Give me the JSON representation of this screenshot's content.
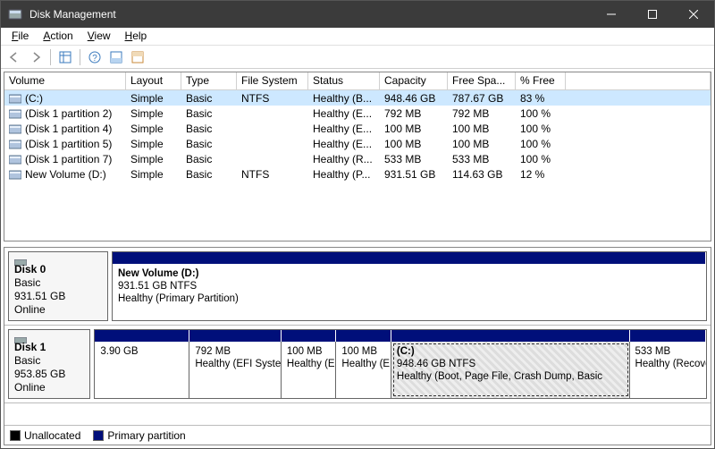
{
  "window": {
    "title": "Disk Management"
  },
  "menu": {
    "file": "File",
    "action": "Action",
    "view": "View",
    "help": "Help"
  },
  "columns": {
    "volume": "Volume",
    "layout": "Layout",
    "type": "Type",
    "filesystem": "File System",
    "status": "Status",
    "capacity": "Capacity",
    "freespace": "Free Spa...",
    "pctfree": "% Free"
  },
  "volumes": [
    {
      "name": "(C:)",
      "layout": "Simple",
      "type": "Basic",
      "fs": "NTFS",
      "status": "Healthy (B...",
      "capacity": "948.46 GB",
      "free": "787.67 GB",
      "pct": "83 %",
      "selected": true
    },
    {
      "name": "(Disk 1 partition 2)",
      "layout": "Simple",
      "type": "Basic",
      "fs": "",
      "status": "Healthy (E...",
      "capacity": "792 MB",
      "free": "792 MB",
      "pct": "100 %"
    },
    {
      "name": "(Disk 1 partition 4)",
      "layout": "Simple",
      "type": "Basic",
      "fs": "",
      "status": "Healthy (E...",
      "capacity": "100 MB",
      "free": "100 MB",
      "pct": "100 %"
    },
    {
      "name": "(Disk 1 partition 5)",
      "layout": "Simple",
      "type": "Basic",
      "fs": "",
      "status": "Healthy (E...",
      "capacity": "100 MB",
      "free": "100 MB",
      "pct": "100 %"
    },
    {
      "name": "(Disk 1 partition 7)",
      "layout": "Simple",
      "type": "Basic",
      "fs": "",
      "status": "Healthy (R...",
      "capacity": "533 MB",
      "free": "533 MB",
      "pct": "100 %"
    },
    {
      "name": "New Volume (D:)",
      "layout": "Simple",
      "type": "Basic",
      "fs": "NTFS",
      "status": "Healthy (P...",
      "capacity": "931.51 GB",
      "free": "114.63 GB",
      "pct": "12 %"
    }
  ],
  "disks": [
    {
      "label": "Disk 0",
      "kind": "Basic",
      "size": "931.51 GB",
      "state": "Online",
      "icon": "disk-basic",
      "partitions": [
        {
          "name": "New Volume  (D:)",
          "line2": "931.51 GB NTFS",
          "line3": "Healthy (Primary Partition)",
          "widthPct": 100
        }
      ]
    },
    {
      "label": "Disk 1",
      "kind": "Basic",
      "size": "953.85 GB",
      "state": "Online",
      "icon": "disk-basic",
      "partitions": [
        {
          "name": "",
          "line2": "3.90 GB",
          "line3": "",
          "widthPct": 15.5
        },
        {
          "name": "",
          "line2": "792 MB",
          "line3": "Healthy (EFI System",
          "widthPct": 15
        },
        {
          "name": "",
          "line2": "100 MB",
          "line3": "Healthy (EFI",
          "widthPct": 9
        },
        {
          "name": "",
          "line2": "100 MB",
          "line3": "Healthy (EFI",
          "widthPct": 9
        },
        {
          "name": "(C:)",
          "line2": "948.46 GB NTFS",
          "line3": "Healthy (Boot, Page File, Crash Dump, Basic",
          "widthPct": 39,
          "selected": true
        },
        {
          "name": "",
          "line2": "533 MB",
          "line3": "Healthy (Recovery I",
          "widthPct": 12.5
        }
      ]
    }
  ],
  "legend": {
    "unallocated": "Unallocated",
    "primary": "Primary partition"
  },
  "colors": {
    "accent": "#000f7a",
    "titlebar": "#3b3b3b"
  }
}
